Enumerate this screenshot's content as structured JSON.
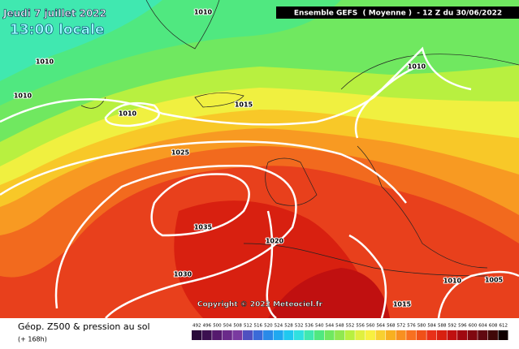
{
  "header": {
    "date": "Jeudi 7 juillet 2022",
    "time": "13:00 locale",
    "model": "Ensemble GEFS  ( Moyenne )  - 12 Z du 30/06/2022"
  },
  "isobar_labels": [
    "1010",
    "1010",
    "1010",
    "1010",
    "1015",
    "1025",
    "1035",
    "1030",
    "1020",
    "1010",
    "1015",
    "1010",
    "1005"
  ],
  "copyright": "Copyright © 2022 Meteociel.fr",
  "footer": {
    "title": "Géop. Z500 & pression au sol",
    "lead": "(+ 168h)"
  },
  "scale": {
    "labels": [
      492,
      496,
      500,
      504,
      508,
      512,
      516,
      520,
      524,
      528,
      532,
      536,
      540,
      544,
      548,
      552,
      556,
      560,
      564,
      568,
      572,
      576,
      580,
      584,
      588,
      592,
      596,
      600,
      604,
      608,
      612
    ],
    "colors": [
      "#2a0a3a",
      "#3b1050",
      "#551a6e",
      "#6a2a8a",
      "#7a3aa0",
      "#5050c0",
      "#3a6ad8",
      "#2a8ae8",
      "#20a8f0",
      "#20c8f0",
      "#30e0e0",
      "#40e8b0",
      "#50e880",
      "#70e860",
      "#90e850",
      "#b8f040",
      "#e0f040",
      "#f8f040",
      "#f8d030",
      "#f8b020",
      "#f89020",
      "#f87020",
      "#f05018",
      "#e83018",
      "#d82010",
      "#c01010",
      "#a00810",
      "#800810",
      "#600810",
      "#400808",
      "#100000"
    ]
  }
}
